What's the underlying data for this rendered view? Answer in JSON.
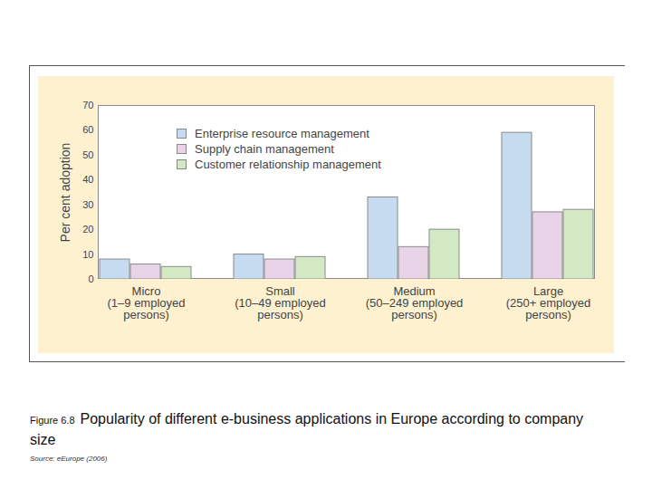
{
  "chart_data": {
    "type": "bar",
    "figure_label": "Figure 6.8",
    "title": "Popularity of different e-business applications in Europe according to company size",
    "source": "Source: eEurope (2006)",
    "ylabel": "Per cent adoption",
    "categories": [
      "Micro\n(1–9 employed\npersons)",
      "Small\n(10–49 employed\npersons)",
      "Medium\n(50–249 employed\npersons)",
      "Large\n(250+ employed\npersons)"
    ],
    "series": [
      {
        "name": "Enterprise resource management",
        "color": "#c6daf0",
        "values": [
          8,
          10,
          33,
          59
        ]
      },
      {
        "name": "Supply chain management",
        "color": "#e8d3e8",
        "values": [
          6,
          8,
          13,
          27
        ]
      },
      {
        "name": "Customer relationship management",
        "color": "#d3e9c3",
        "values": [
          5,
          9,
          20,
          28
        ]
      }
    ],
    "ylim": [
      0,
      70
    ],
    "yticks": [
      0,
      10,
      20,
      30,
      40,
      50,
      60,
      70
    ],
    "grid": false,
    "legend": "top-left"
  }
}
